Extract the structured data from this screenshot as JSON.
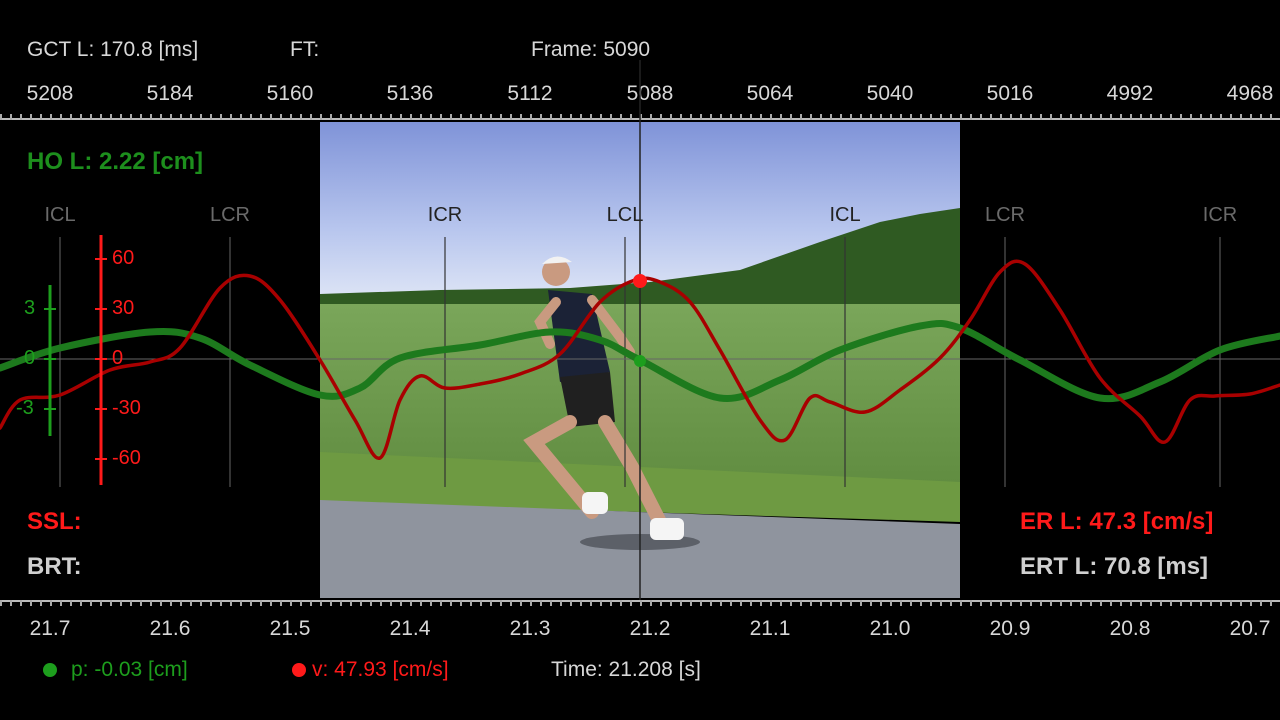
{
  "header": {
    "gct": "GCT L: 170.8 [ms]",
    "ft": "FT:",
    "frame": "Frame: 5090"
  },
  "frame_ticks": [
    "5208",
    "5184",
    "5160",
    "5136",
    "5112",
    "5088",
    "5064",
    "5040",
    "5016",
    "4992",
    "4968"
  ],
  "time_ticks": [
    "21.7",
    "21.6",
    "21.5",
    "21.4",
    "21.3",
    "21.2",
    "21.1",
    "21.0",
    "20.9",
    "20.8",
    "20.7"
  ],
  "metrics": {
    "ho": "HO L: 2.22 [cm]",
    "ssl": "SSL:",
    "brt": "BRT:",
    "er": "ER L: 47.3 [cm/s]",
    "ert": "ERT L: 70.8 [ms]"
  },
  "events": [
    {
      "label": "ICL",
      "dim": true
    },
    {
      "label": "LCR",
      "dim": true
    },
    {
      "label": "ICR",
      "dim": false
    },
    {
      "label": "LCL",
      "dim": false
    },
    {
      "label": "ICL",
      "dim": false
    },
    {
      "label": "LCR",
      "dim": true
    },
    {
      "label": "ICR",
      "dim": true
    }
  ],
  "axes": {
    "position_ticks": [
      "3",
      "0",
      "-3"
    ],
    "velocity_ticks": [
      "60",
      "30",
      "0",
      "-30",
      "-60"
    ]
  },
  "footer": {
    "position_readout": "p: -0.03 [cm]",
    "velocity_readout": "v: 47.93 [cm/s]",
    "time_readout": "Time: 21.208 [s]"
  },
  "colors": {
    "position": "#1d7a1d",
    "velocity": "#a80000",
    "marker_green": "#1d9e1d",
    "marker_red": "#ff1a1a"
  }
}
